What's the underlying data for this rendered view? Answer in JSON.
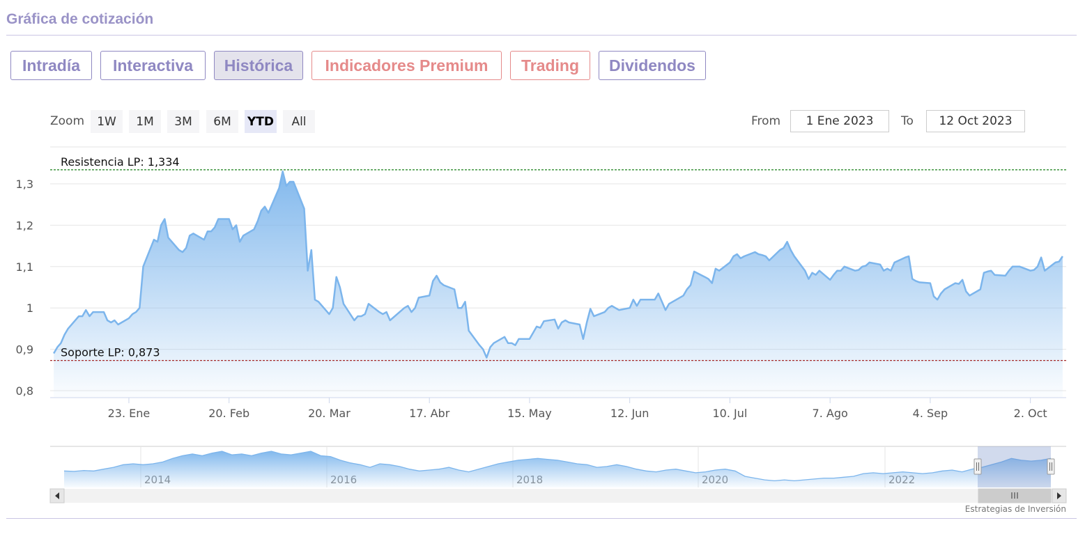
{
  "title": "Gráfica de cotización",
  "tabs": [
    {
      "label": "Intradía",
      "state": "normal"
    },
    {
      "label": "Interactiva",
      "state": "normal"
    },
    {
      "label": "Histórica",
      "state": "active"
    },
    {
      "label": "Indicadores Premium",
      "state": "warm"
    },
    {
      "label": "Trading",
      "state": "warm"
    },
    {
      "label": "Dividendos",
      "state": "normal"
    }
  ],
  "zoom": {
    "label": "Zoom",
    "buttons": [
      "1W",
      "1M",
      "3M",
      "6M",
      "YTD",
      "All"
    ],
    "active": "YTD"
  },
  "range": {
    "from_label": "From",
    "from_value": "1 Ene 2023",
    "to_label": "To",
    "to_value": "12 Oct 2023"
  },
  "colors": {
    "line": "#7cb5ec",
    "resistance": "#2e8b2e",
    "support": "#a52a2a",
    "tab_text": "#8f88c2",
    "tab_warm": "#e58a8a"
  },
  "credit": "Estrategias de Inversión",
  "chart_data": {
    "type": "area",
    "x_range": [
      "2023-01-01",
      "2023-10-12"
    ],
    "ylim": [
      0.8,
      1.35
    ],
    "y_ticks": [
      {
        "value": 1.3,
        "label": "1,3"
      },
      {
        "value": 1.2,
        "label": "1,2"
      },
      {
        "value": 1.1,
        "label": "1,1"
      },
      {
        "value": 1.0,
        "label": "1"
      },
      {
        "value": 0.9,
        "label": "0,9"
      },
      {
        "value": 0.8,
        "label": "0,8"
      }
    ],
    "x_ticks": [
      {
        "date": "2023-01-23",
        "label": "23. Ene"
      },
      {
        "date": "2023-02-20",
        "label": "20. Feb"
      },
      {
        "date": "2023-03-20",
        "label": "20. Mar"
      },
      {
        "date": "2023-04-17",
        "label": "17. Abr"
      },
      {
        "date": "2023-05-15",
        "label": "15. May"
      },
      {
        "date": "2023-06-12",
        "label": "12. Jun"
      },
      {
        "date": "2023-07-10",
        "label": "10. Jul"
      },
      {
        "date": "2023-08-07",
        "label": "7. Ago"
      },
      {
        "date": "2023-09-04",
        "label": "4. Sep"
      },
      {
        "date": "2023-10-02",
        "label": "2. Oct"
      }
    ],
    "plot_lines": [
      {
        "label": "Resistencia LP: 1,334",
        "value": 1.334,
        "color": "#2e8b2e"
      },
      {
        "label": "Soporte LP: 0,873",
        "value": 0.873,
        "color": "#a52a2a"
      }
    ],
    "series": [
      {
        "points": [
          [
            "2023-01-02",
            0.89
          ],
          [
            "2023-01-03",
            0.905
          ],
          [
            "2023-01-04",
            0.915
          ],
          [
            "2023-01-05",
            0.935
          ],
          [
            "2023-01-06",
            0.95
          ],
          [
            "2023-01-09",
            0.98
          ],
          [
            "2023-01-10",
            0.98
          ],
          [
            "2023-01-11",
            0.995
          ],
          [
            "2023-01-12",
            0.98
          ],
          [
            "2023-01-13",
            0.99
          ],
          [
            "2023-01-16",
            0.99
          ],
          [
            "2023-01-17",
            0.97
          ],
          [
            "2023-01-18",
            0.965
          ],
          [
            "2023-01-19",
            0.97
          ],
          [
            "2023-01-20",
            0.96
          ],
          [
            "2023-01-23",
            0.975
          ],
          [
            "2023-01-24",
            0.985
          ],
          [
            "2023-01-25",
            0.99
          ],
          [
            "2023-01-26",
            1.0
          ],
          [
            "2023-01-27",
            1.1
          ],
          [
            "2023-01-30",
            1.165
          ],
          [
            "2023-01-31",
            1.16
          ],
          [
            "2023-02-01",
            1.2
          ],
          [
            "2023-02-02",
            1.215
          ],
          [
            "2023-02-03",
            1.17
          ],
          [
            "2023-02-06",
            1.14
          ],
          [
            "2023-02-07",
            1.135
          ],
          [
            "2023-02-08",
            1.145
          ],
          [
            "2023-02-09",
            1.175
          ],
          [
            "2023-02-10",
            1.18
          ],
          [
            "2023-02-13",
            1.165
          ],
          [
            "2023-02-14",
            1.185
          ],
          [
            "2023-02-15",
            1.185
          ],
          [
            "2023-02-16",
            1.195
          ],
          [
            "2023-02-17",
            1.215
          ],
          [
            "2023-02-20",
            1.215
          ],
          [
            "2023-02-21",
            1.19
          ],
          [
            "2023-02-22",
            1.2
          ],
          [
            "2023-02-23",
            1.16
          ],
          [
            "2023-02-24",
            1.175
          ],
          [
            "2023-02-27",
            1.19
          ],
          [
            "2023-02-28",
            1.21
          ],
          [
            "2023-03-01",
            1.235
          ],
          [
            "2023-03-02",
            1.245
          ],
          [
            "2023-03-03",
            1.23
          ],
          [
            "2023-03-06",
            1.29
          ],
          [
            "2023-03-07",
            1.33
          ],
          [
            "2023-03-08",
            1.295
          ],
          [
            "2023-03-09",
            1.305
          ],
          [
            "2023-03-10",
            1.305
          ],
          [
            "2023-03-13",
            1.24
          ],
          [
            "2023-03-14",
            1.09
          ],
          [
            "2023-03-15",
            1.14
          ],
          [
            "2023-03-16",
            1.02
          ],
          [
            "2023-03-17",
            1.015
          ],
          [
            "2023-03-20",
            0.985
          ],
          [
            "2023-03-21",
            1.0
          ],
          [
            "2023-03-22",
            1.075
          ],
          [
            "2023-03-23",
            1.05
          ],
          [
            "2023-03-24",
            1.01
          ],
          [
            "2023-03-27",
            0.97
          ],
          [
            "2023-03-28",
            0.98
          ],
          [
            "2023-03-29",
            0.98
          ],
          [
            "2023-03-30",
            0.985
          ],
          [
            "2023-03-31",
            1.01
          ],
          [
            "2023-04-03",
            0.99
          ],
          [
            "2023-04-04",
            0.985
          ],
          [
            "2023-04-05",
            0.99
          ],
          [
            "2023-04-06",
            0.97
          ],
          [
            "2023-04-10",
            1.0
          ],
          [
            "2023-04-11",
            1.005
          ],
          [
            "2023-04-12",
            0.99
          ],
          [
            "2023-04-13",
            1.0
          ],
          [
            "2023-04-14",
            1.025
          ],
          [
            "2023-04-17",
            1.03
          ],
          [
            "2023-04-18",
            1.065
          ],
          [
            "2023-04-19",
            1.078
          ],
          [
            "2023-04-20",
            1.062
          ],
          [
            "2023-04-21",
            1.055
          ],
          [
            "2023-04-24",
            1.045
          ],
          [
            "2023-04-25",
            1.0
          ],
          [
            "2023-04-26",
            1.0
          ],
          [
            "2023-04-27",
            1.015
          ],
          [
            "2023-04-28",
            0.945
          ],
          [
            "2023-05-01",
            0.91
          ],
          [
            "2023-05-02",
            0.9
          ],
          [
            "2023-05-03",
            0.88
          ],
          [
            "2023-05-04",
            0.905
          ],
          [
            "2023-05-05",
            0.915
          ],
          [
            "2023-05-08",
            0.93
          ],
          [
            "2023-05-09",
            0.915
          ],
          [
            "2023-05-10",
            0.915
          ],
          [
            "2023-05-11",
            0.91
          ],
          [
            "2023-05-12",
            0.925
          ],
          [
            "2023-05-15",
            0.925
          ],
          [
            "2023-05-16",
            0.94
          ],
          [
            "2023-05-17",
            0.955
          ],
          [
            "2023-05-18",
            0.952
          ],
          [
            "2023-05-19",
            0.968
          ],
          [
            "2023-05-22",
            0.972
          ],
          [
            "2023-05-23",
            0.95
          ],
          [
            "2023-05-24",
            0.965
          ],
          [
            "2023-05-25",
            0.97
          ],
          [
            "2023-05-26",
            0.965
          ],
          [
            "2023-05-29",
            0.96
          ],
          [
            "2023-05-30",
            0.925
          ],
          [
            "2023-05-31",
            0.965
          ],
          [
            "2023-06-01",
            0.998
          ],
          [
            "2023-06-02",
            0.98
          ],
          [
            "2023-06-05",
            0.99
          ],
          [
            "2023-06-06",
            1.0
          ],
          [
            "2023-06-07",
            1.005
          ],
          [
            "2023-06-08",
            1.0
          ],
          [
            "2023-06-09",
            0.995
          ],
          [
            "2023-06-12",
            1.0
          ],
          [
            "2023-06-13",
            1.02
          ],
          [
            "2023-06-14",
            1.005
          ],
          [
            "2023-06-15",
            1.02
          ],
          [
            "2023-06-16",
            1.02
          ],
          [
            "2023-06-19",
            1.02
          ],
          [
            "2023-06-20",
            1.035
          ],
          [
            "2023-06-21",
            1.015
          ],
          [
            "2023-06-22",
            0.995
          ],
          [
            "2023-06-23",
            1.01
          ],
          [
            "2023-06-26",
            1.025
          ],
          [
            "2023-06-27",
            1.03
          ],
          [
            "2023-06-28",
            1.045
          ],
          [
            "2023-06-29",
            1.055
          ],
          [
            "2023-06-30",
            1.088
          ],
          [
            "2023-07-03",
            1.075
          ],
          [
            "2023-07-04",
            1.07
          ],
          [
            "2023-07-05",
            1.06
          ],
          [
            "2023-07-06",
            1.095
          ],
          [
            "2023-07-07",
            1.09
          ],
          [
            "2023-07-10",
            1.11
          ],
          [
            "2023-07-11",
            1.125
          ],
          [
            "2023-07-12",
            1.13
          ],
          [
            "2023-07-13",
            1.12
          ],
          [
            "2023-07-14",
            1.125
          ],
          [
            "2023-07-17",
            1.135
          ],
          [
            "2023-07-18",
            1.13
          ],
          [
            "2023-07-19",
            1.128
          ],
          [
            "2023-07-20",
            1.125
          ],
          [
            "2023-07-21",
            1.115
          ],
          [
            "2023-07-24",
            1.14
          ],
          [
            "2023-07-25",
            1.145
          ],
          [
            "2023-07-26",
            1.16
          ],
          [
            "2023-07-27",
            1.14
          ],
          [
            "2023-07-28",
            1.125
          ],
          [
            "2023-07-31",
            1.09
          ],
          [
            "2023-08-01",
            1.07
          ],
          [
            "2023-08-02",
            1.085
          ],
          [
            "2023-08-03",
            1.08
          ],
          [
            "2023-08-04",
            1.09
          ],
          [
            "2023-08-07",
            1.068
          ],
          [
            "2023-08-08",
            1.08
          ],
          [
            "2023-08-09",
            1.09
          ],
          [
            "2023-08-10",
            1.09
          ],
          [
            "2023-08-11",
            1.1
          ],
          [
            "2023-08-14",
            1.09
          ],
          [
            "2023-08-15",
            1.092
          ],
          [
            "2023-08-16",
            1.1
          ],
          [
            "2023-08-17",
            1.102
          ],
          [
            "2023-08-18",
            1.11
          ],
          [
            "2023-08-21",
            1.105
          ],
          [
            "2023-08-22",
            1.09
          ],
          [
            "2023-08-23",
            1.095
          ],
          [
            "2023-08-24",
            1.09
          ],
          [
            "2023-08-25",
            1.11
          ],
          [
            "2023-08-28",
            1.122
          ],
          [
            "2023-08-29",
            1.125
          ],
          [
            "2023-08-30",
            1.07
          ],
          [
            "2023-08-31",
            1.065
          ],
          [
            "2023-09-01",
            1.062
          ],
          [
            "2023-09-04",
            1.06
          ],
          [
            "2023-09-05",
            1.028
          ],
          [
            "2023-09-06",
            1.02
          ],
          [
            "2023-09-07",
            1.035
          ],
          [
            "2023-09-08",
            1.045
          ],
          [
            "2023-09-11",
            1.06
          ],
          [
            "2023-09-12",
            1.058
          ],
          [
            "2023-09-13",
            1.068
          ],
          [
            "2023-09-14",
            1.04
          ],
          [
            "2023-09-15",
            1.03
          ],
          [
            "2023-09-18",
            1.045
          ],
          [
            "2023-09-19",
            1.085
          ],
          [
            "2023-09-20",
            1.088
          ],
          [
            "2023-09-21",
            1.09
          ],
          [
            "2023-09-22",
            1.08
          ],
          [
            "2023-09-25",
            1.078
          ],
          [
            "2023-09-26",
            1.09
          ],
          [
            "2023-09-27",
            1.1
          ],
          [
            "2023-09-28",
            1.1
          ],
          [
            "2023-09-29",
            1.1
          ],
          [
            "2023-10-02",
            1.09
          ],
          [
            "2023-10-03",
            1.092
          ],
          [
            "2023-10-04",
            1.1
          ],
          [
            "2023-10-05",
            1.122
          ],
          [
            "2023-10-06",
            1.09
          ],
          [
            "2023-10-09",
            1.11
          ],
          [
            "2023-10-10",
            1.112
          ],
          [
            "2023-10-11",
            1.125
          ]
        ]
      }
    ],
    "navigator": {
      "year_labels": [
        "2014",
        "2016",
        "2018",
        "2020",
        "2022"
      ],
      "selection": "2023-01-01 to 2023-10-12",
      "overview_values": [
        0.98,
        0.975,
        0.985,
        0.98,
        1.0,
        1.02,
        1.05,
        1.06,
        1.05,
        1.06,
        1.08,
        1.12,
        1.15,
        1.17,
        1.15,
        1.18,
        1.2,
        1.16,
        1.17,
        1.15,
        1.18,
        1.2,
        1.17,
        1.16,
        1.18,
        1.2,
        1.15,
        1.14,
        1.1,
        1.07,
        1.05,
        1.02,
        1.06,
        1.05,
        1.03,
        1.0,
        0.98,
        0.99,
        1.0,
        1.02,
        0.99,
        0.97,
        1.0,
        1.03,
        1.06,
        1.08,
        1.1,
        1.11,
        1.12,
        1.11,
        1.1,
        1.08,
        1.06,
        1.05,
        1.02,
        1.03,
        1.05,
        1.03,
        1.0,
        0.98,
        0.97,
        0.99,
        1.0,
        0.98,
        0.96,
        0.97,
        0.99,
        1.0,
        0.98,
        0.92,
        0.9,
        0.88,
        0.87,
        0.88,
        0.87,
        0.88,
        0.89,
        0.9,
        0.9,
        0.91,
        0.92,
        0.95,
        0.96,
        0.95,
        0.96,
        0.97,
        0.96,
        0.95,
        0.96,
        0.98,
        0.99,
        0.97,
        1.0,
        1.02,
        1.05,
        1.08,
        1.12,
        1.1,
        1.09,
        1.1,
        1.12
      ]
    }
  }
}
